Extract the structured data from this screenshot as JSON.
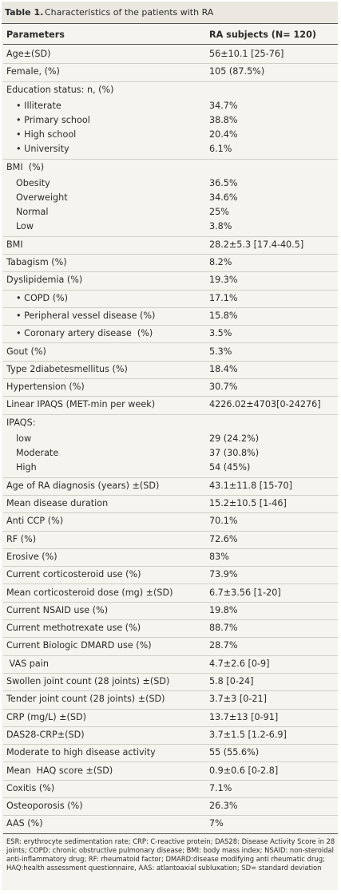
{
  "table": {
    "title_label": "Table 1.",
    "title_text": "Characteristics of the patients with RA",
    "header": [
      "Parameters",
      "RA subjects (N= 120)"
    ],
    "rows": [
      {
        "label": "Age±(SD)",
        "value": "56±10.1 [25-76]"
      },
      {
        "label": "Female, (%)",
        "value": "105 (87.5%)"
      },
      {
        "label": "Education status: n, (%)",
        "items": [
          {
            "label": "• Illiterate",
            "value": "34.7%"
          },
          {
            "label": "• Primary school",
            "value": "38.8%"
          },
          {
            "label": "• High school",
            "value": "20.4%"
          },
          {
            "label": "• University",
            "value": "6.1%"
          }
        ]
      },
      {
        "label": "BMI  (%)",
        "items": [
          {
            "label": "Obesity",
            "value": "36.5%"
          },
          {
            "label": "Overweight",
            "value": "34.6%"
          },
          {
            "label": "Normal",
            "value": "25%"
          },
          {
            "label": "Low",
            "value": "3.8%"
          }
        ]
      },
      {
        "label": "BMI",
        "value": "28.2±5.3 [17.4-40.5]"
      },
      {
        "label": "Tabagism (%)",
        "value": "8.2%"
      },
      {
        "label": "Dyslipidemia (%)",
        "value": "19.3%"
      },
      {
        "label": "• COPD (%)",
        "value": "17.1%"
      },
      {
        "label": "• Peripheral vessel disease (%)",
        "value": "15.8%"
      },
      {
        "label": "• Coronary artery disease  (%)",
        "value": "3.5%"
      },
      {
        "label": "Gout (%)",
        "value": "5.3%"
      },
      {
        "label": "Type 2diabetesmellitus (%)",
        "value": "18.4%"
      },
      {
        "label": "Hypertension (%)",
        "value": "30.7%"
      },
      {
        "label": "Linear IPAQS (MET-min per week)",
        "value": "4226.02±4703[0-24276]"
      },
      {
        "label": "IPAQS:",
        "items": [
          {
            "label": "low",
            "value": "29 (24.2%)"
          },
          {
            "label": "Moderate",
            "value": "37 (30.8%)"
          },
          {
            "label": "High",
            "value": "54 (45%)"
          }
        ]
      },
      {
        "label": "Age of RA diagnosis (years) ±(SD)",
        "value": "43.1±11.8 [15-70]"
      },
      {
        "label": "Mean disease duration",
        "value": "15.2±10.5 [1-46]"
      },
      {
        "label": "Anti CCP (%)",
        "value": "70.1%"
      },
      {
        "label": "RF (%)",
        "value": "72.6%"
      },
      {
        "label": "Erosive (%)",
        "value": "83%"
      },
      {
        "label": "Current corticosteroid use (%)",
        "value": "73.9%"
      },
      {
        "label": "Mean corticosteroid dose (mg) ±(SD)",
        "value": "6.7±3.56 [1-20]"
      },
      {
        "label": "Current NSAID use (%)",
        "value": "19.8%"
      },
      {
        "label": "Current methotrexate use (%)",
        "value": "88.7%"
      },
      {
        "label": "Current Biologic DMARD use (%)",
        "value": "28.7%"
      },
      {
        "label": " VAS pain",
        "value": "4.7±2.6 [0-9]"
      },
      {
        "label": "Swollen joint count (28 joints) ±(SD)",
        "value": "5.8 [0-24]"
      },
      {
        "label": "Tender joint count (28 joints) ±(SD)",
        "value": "3.7±3 [0-21]"
      },
      {
        "label": "CRP (mg/L) ±(SD)",
        "value": "13.7±13 [0-91]"
      },
      {
        "label": "DAS28-CRP±(SD)",
        "value": "3.7±1.5 [1.2-6.9]"
      },
      {
        "label": "Moderate to high disease activity",
        "value": "55 (55.6%)"
      },
      {
        "label": "Mean  HAQ score ±(SD)",
        "value": "0.9±0.6 [0-2.8]"
      },
      {
        "label": "Coxitis (%)",
        "value": "7.1%"
      },
      {
        "label": "Osteoporosis (%)",
        "value": "26.3%"
      },
      {
        "label": "AAS (%)",
        "value": "7%"
      }
    ],
    "footnote": "ESR: erythrocyte sedimentation rate; CRP: C-reactive protein; DAS28: Disease Activity Score in 28 joints; COPD: chronic obstructive pulmonary disease; BMI: body mass index; NSAID: non-steroidal anti-inflammatory drug; RF: rheumatoid factor; DMARD:disease modifying anti rheumatic drug; HAQ:health assessment questionnaire, AAS: atlantoaxial subluxation; SD= standard deviation"
  }
}
